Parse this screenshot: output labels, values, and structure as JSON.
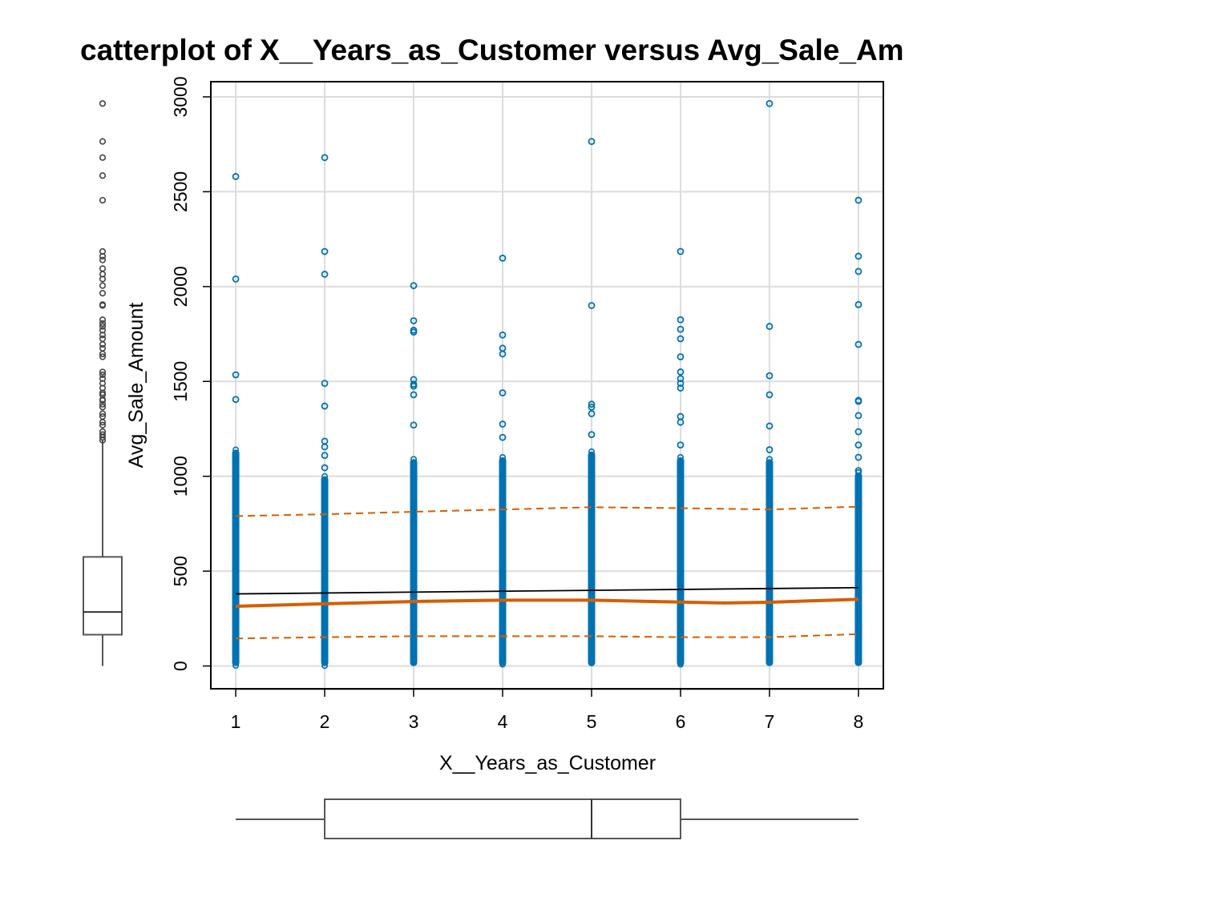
{
  "chart_data": {
    "type": "scatter",
    "title": "Scatterplot of X__Years_as_Customer versus Avg_Sale_Amount",
    "title_visible": "catterplot of X__Years_as_Customer versus Avg_Sale_Am",
    "xlabel": "X__Years_as_Customer",
    "ylabel": "Avg_Sale_Amount",
    "x_ticks": [
      "1",
      "2",
      "3",
      "4",
      "5",
      "6",
      "7",
      "8"
    ],
    "y_ticks": [
      "0",
      "500",
      "1000",
      "1500",
      "2000",
      "2500",
      "3000"
    ],
    "xlim": [
      0.72,
      8.28
    ],
    "ylim": [
      -120,
      3080
    ],
    "grid": true,
    "point_color": "#0072B2",
    "smoother_color": "#D55E00",
    "regression_color": "#000000",
    "dense_ranges": [
      {
        "x": 1,
        "min": 0,
        "max": 1140
      },
      {
        "x": 2,
        "min": 0,
        "max": 1000
      },
      {
        "x": 3,
        "min": 0,
        "max": 1090
      },
      {
        "x": 4,
        "min": 0,
        "max": 1100
      },
      {
        "x": 5,
        "min": 0,
        "max": 1130
      },
      {
        "x": 6,
        "min": 0,
        "max": 1100
      },
      {
        "x": 7,
        "min": 0,
        "max": 1090
      },
      {
        "x": 8,
        "min": 0,
        "max": 1020
      }
    ],
    "points": [
      {
        "x": 1,
        "y": 2580
      },
      {
        "x": 1,
        "y": 2040
      },
      {
        "x": 1,
        "y": 1535
      },
      {
        "x": 1,
        "y": 1405
      },
      {
        "x": 2,
        "y": 2680
      },
      {
        "x": 2,
        "y": 2185
      },
      {
        "x": 2,
        "y": 2065
      },
      {
        "x": 2,
        "y": 1490
      },
      {
        "x": 2,
        "y": 1370
      },
      {
        "x": 2,
        "y": 1185
      },
      {
        "x": 2,
        "y": 1155
      },
      {
        "x": 2,
        "y": 1110
      },
      {
        "x": 2,
        "y": 1045
      },
      {
        "x": 3,
        "y": 2005
      },
      {
        "x": 3,
        "y": 1820
      },
      {
        "x": 3,
        "y": 1770
      },
      {
        "x": 3,
        "y": 1760
      },
      {
        "x": 3,
        "y": 1510
      },
      {
        "x": 3,
        "y": 1485
      },
      {
        "x": 3,
        "y": 1475
      },
      {
        "x": 3,
        "y": 1430
      },
      {
        "x": 3,
        "y": 1270
      },
      {
        "x": 4,
        "y": 2150
      },
      {
        "x": 4,
        "y": 1745
      },
      {
        "x": 4,
        "y": 1675
      },
      {
        "x": 4,
        "y": 1645
      },
      {
        "x": 4,
        "y": 1440
      },
      {
        "x": 4,
        "y": 1275
      },
      {
        "x": 4,
        "y": 1205
      },
      {
        "x": 5,
        "y": 2765
      },
      {
        "x": 5,
        "y": 1900
      },
      {
        "x": 5,
        "y": 1380
      },
      {
        "x": 5,
        "y": 1365
      },
      {
        "x": 5,
        "y": 1330
      },
      {
        "x": 5,
        "y": 1220
      },
      {
        "x": 6,
        "y": 2185
      },
      {
        "x": 6,
        "y": 1825
      },
      {
        "x": 6,
        "y": 1775
      },
      {
        "x": 6,
        "y": 1725
      },
      {
        "x": 6,
        "y": 1630
      },
      {
        "x": 6,
        "y": 1550
      },
      {
        "x": 6,
        "y": 1515
      },
      {
        "x": 6,
        "y": 1490
      },
      {
        "x": 6,
        "y": 1465
      },
      {
        "x": 6,
        "y": 1315
      },
      {
        "x": 6,
        "y": 1285
      },
      {
        "x": 6,
        "y": 1165
      },
      {
        "x": 7,
        "y": 2965
      },
      {
        "x": 7,
        "y": 1790
      },
      {
        "x": 7,
        "y": 1530
      },
      {
        "x": 7,
        "y": 1430
      },
      {
        "x": 7,
        "y": 1265
      },
      {
        "x": 7,
        "y": 1140
      },
      {
        "x": 8,
        "y": 2455
      },
      {
        "x": 8,
        "y": 2160
      },
      {
        "x": 8,
        "y": 2080
      },
      {
        "x": 8,
        "y": 1905
      },
      {
        "x": 8,
        "y": 1695
      },
      {
        "x": 8,
        "y": 1400
      },
      {
        "x": 8,
        "y": 1395
      },
      {
        "x": 8,
        "y": 1320
      },
      {
        "x": 8,
        "y": 1235
      },
      {
        "x": 8,
        "y": 1165
      },
      {
        "x": 8,
        "y": 1100
      },
      {
        "x": 8,
        "y": 1030
      }
    ],
    "regression_line": [
      {
        "x": 1,
        "y": 380
      },
      {
        "x": 8,
        "y": 413
      }
    ],
    "smoother": [
      {
        "x": 1,
        "y": 315
      },
      {
        "x": 2,
        "y": 328
      },
      {
        "x": 3,
        "y": 340
      },
      {
        "x": 4,
        "y": 347
      },
      {
        "x": 5,
        "y": 347
      },
      {
        "x": 6,
        "y": 337
      },
      {
        "x": 6.5,
        "y": 332
      },
      {
        "x": 7,
        "y": 336
      },
      {
        "x": 8,
        "y": 352
      }
    ],
    "spread_upper": [
      {
        "x": 1,
        "y": 790
      },
      {
        "x": 2,
        "y": 800
      },
      {
        "x": 3,
        "y": 813
      },
      {
        "x": 4,
        "y": 825
      },
      {
        "x": 5,
        "y": 837
      },
      {
        "x": 6,
        "y": 832
      },
      {
        "x": 7,
        "y": 825
      },
      {
        "x": 8,
        "y": 840
      }
    ],
    "spread_lower": [
      {
        "x": 1,
        "y": 145
      },
      {
        "x": 2,
        "y": 152
      },
      {
        "x": 3,
        "y": 157
      },
      {
        "x": 4,
        "y": 157
      },
      {
        "x": 5,
        "y": 157
      },
      {
        "x": 6,
        "y": 152
      },
      {
        "x": 7,
        "y": 152
      },
      {
        "x": 8,
        "y": 168
      }
    ],
    "y_boxplot": {
      "min": 0,
      "q1": 165,
      "median": 285,
      "q3": 575,
      "whisker_high": 1190,
      "outliers": [
        2965,
        2765,
        2680,
        2585,
        2455,
        2185,
        2160,
        2140,
        2095,
        2065,
        2040,
        2005,
        1965,
        1905,
        1900,
        1825,
        1805,
        1790,
        1770,
        1745,
        1725,
        1695,
        1675,
        1645,
        1630,
        1550,
        1535,
        1515,
        1490,
        1465,
        1440,
        1430,
        1405,
        1400,
        1380,
        1365,
        1330,
        1315,
        1285,
        1270,
        1235,
        1220,
        1205,
        1190
      ]
    },
    "x_boxplot": {
      "min": 1,
      "q1": 2,
      "median": 5,
      "q3": 6,
      "max": 8
    }
  }
}
